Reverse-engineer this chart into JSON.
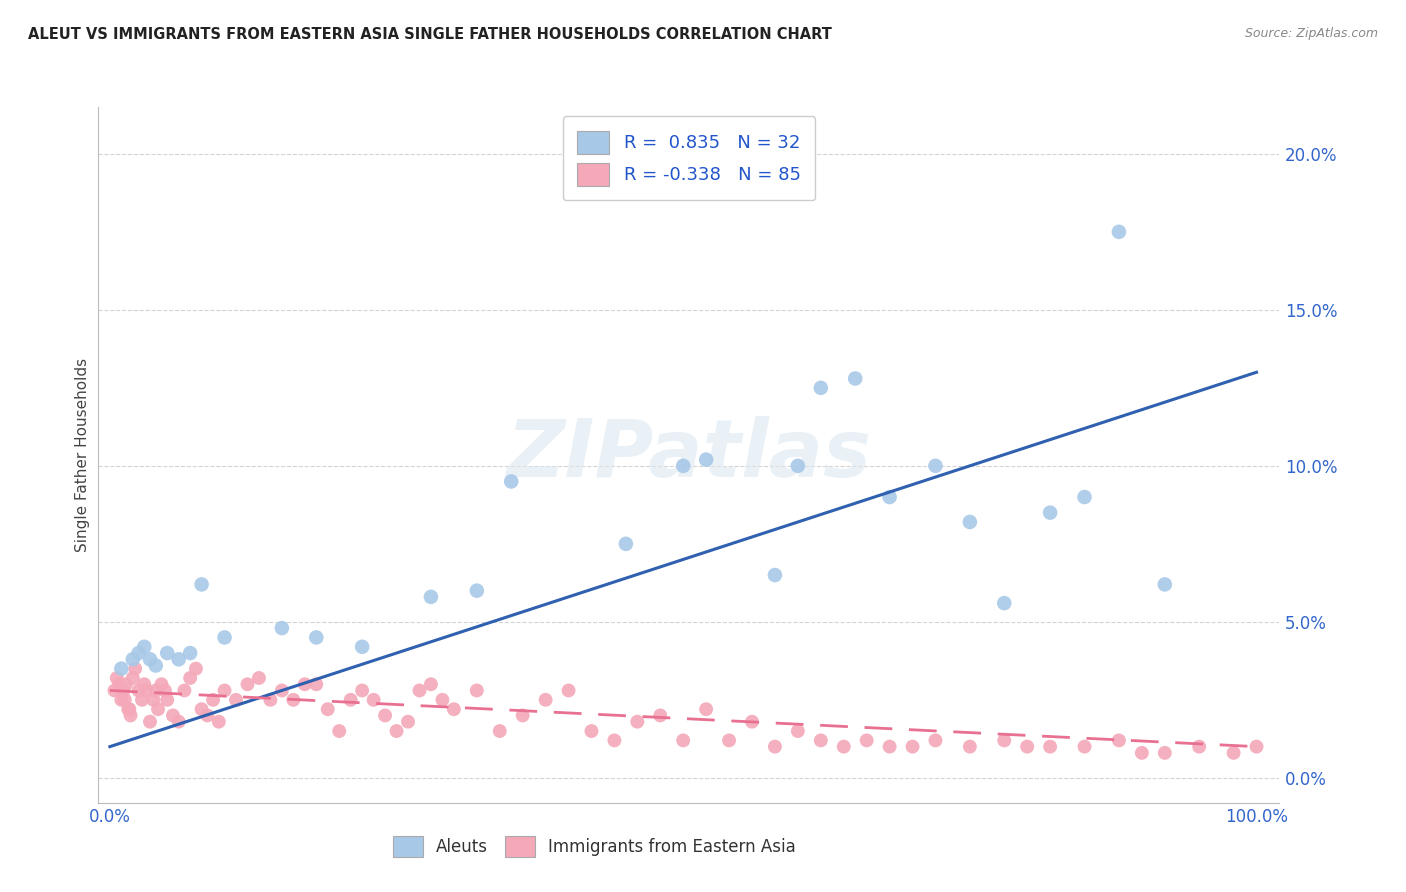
{
  "title": "ALEUT VS IMMIGRANTS FROM EASTERN ASIA SINGLE FATHER HOUSEHOLDS CORRELATION CHART",
  "source": "Source: ZipAtlas.com",
  "ylabel": "Single Father Households",
  "ytick_labels": [
    "0.0%",
    "5.0%",
    "10.0%",
    "15.0%",
    "20.0%"
  ],
  "ytick_values": [
    0.0,
    0.05,
    0.1,
    0.15,
    0.2
  ],
  "xlim": [
    -0.01,
    1.02
  ],
  "ylim": [
    -0.008,
    0.215
  ],
  "blue_color": "#a8c8e8",
  "pink_color": "#f4a8b8",
  "blue_line_color": "#3060b0",
  "pink_line_color": "#e87090",
  "watermark_text": "ZIPatlas",
  "blue_scatter_x": [
    0.01,
    0.02,
    0.025,
    0.03,
    0.035,
    0.04,
    0.05,
    0.06,
    0.07,
    0.08,
    0.1,
    0.15,
    0.18,
    0.22,
    0.28,
    0.32,
    0.35,
    0.45,
    0.5,
    0.52,
    0.58,
    0.6,
    0.62,
    0.65,
    0.68,
    0.72,
    0.75,
    0.78,
    0.82,
    0.85,
    0.88,
    0.92
  ],
  "blue_scatter_y": [
    0.035,
    0.038,
    0.04,
    0.042,
    0.038,
    0.036,
    0.04,
    0.038,
    0.04,
    0.062,
    0.045,
    0.048,
    0.045,
    0.042,
    0.058,
    0.06,
    0.095,
    0.075,
    0.1,
    0.102,
    0.065,
    0.1,
    0.125,
    0.128,
    0.09,
    0.1,
    0.082,
    0.056,
    0.085,
    0.09,
    0.175,
    0.062
  ],
  "pink_scatter_x": [
    0.004,
    0.006,
    0.008,
    0.01,
    0.012,
    0.014,
    0.016,
    0.018,
    0.02,
    0.022,
    0.025,
    0.028,
    0.03,
    0.032,
    0.035,
    0.038,
    0.04,
    0.042,
    0.045,
    0.048,
    0.05,
    0.055,
    0.06,
    0.065,
    0.07,
    0.075,
    0.08,
    0.085,
    0.09,
    0.095,
    0.1,
    0.11,
    0.12,
    0.13,
    0.14,
    0.15,
    0.16,
    0.17,
    0.18,
    0.19,
    0.2,
    0.21,
    0.22,
    0.23,
    0.24,
    0.25,
    0.26,
    0.27,
    0.28,
    0.29,
    0.3,
    0.32,
    0.34,
    0.36,
    0.38,
    0.4,
    0.42,
    0.44,
    0.46,
    0.48,
    0.5,
    0.52,
    0.54,
    0.56,
    0.58,
    0.6,
    0.62,
    0.64,
    0.66,
    0.68,
    0.7,
    0.72,
    0.75,
    0.78,
    0.8,
    0.82,
    0.85,
    0.88,
    0.9,
    0.92,
    0.95,
    0.98,
    1.0,
    0.013,
    0.017
  ],
  "pink_scatter_y": [
    0.028,
    0.032,
    0.03,
    0.025,
    0.028,
    0.03,
    0.022,
    0.02,
    0.032,
    0.035,
    0.028,
    0.025,
    0.03,
    0.028,
    0.018,
    0.025,
    0.028,
    0.022,
    0.03,
    0.028,
    0.025,
    0.02,
    0.018,
    0.028,
    0.032,
    0.035,
    0.022,
    0.02,
    0.025,
    0.018,
    0.028,
    0.025,
    0.03,
    0.032,
    0.025,
    0.028,
    0.025,
    0.03,
    0.03,
    0.022,
    0.015,
    0.025,
    0.028,
    0.025,
    0.02,
    0.015,
    0.018,
    0.028,
    0.03,
    0.025,
    0.022,
    0.028,
    0.015,
    0.02,
    0.025,
    0.028,
    0.015,
    0.012,
    0.018,
    0.02,
    0.012,
    0.022,
    0.012,
    0.018,
    0.01,
    0.015,
    0.012,
    0.01,
    0.012,
    0.01,
    0.01,
    0.012,
    0.01,
    0.012,
    0.01,
    0.01,
    0.01,
    0.012,
    0.008,
    0.008,
    0.01,
    0.008,
    0.01,
    0.025,
    0.022
  ],
  "blue_line_x": [
    0.0,
    1.0
  ],
  "blue_line_y": [
    0.01,
    0.13
  ],
  "pink_line_x": [
    0.0,
    1.0
  ],
  "pink_line_y": [
    0.028,
    0.01
  ],
  "background_color": "#ffffff",
  "grid_color": "#d0d0d0",
  "legend1_labels": [
    "R =  0.835   N = 32",
    "R = -0.338   N = 85"
  ],
  "legend2_labels": [
    "Aleuts",
    "Immigrants from Eastern Asia"
  ]
}
